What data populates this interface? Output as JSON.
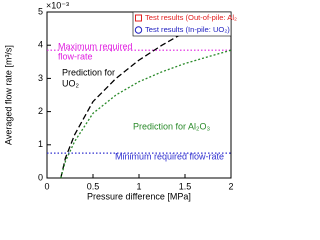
{
  "chart_data": {
    "type": "line",
    "y_multiplier": "×10⁻³",
    "xlabel": "Pressure difference [MPa]",
    "ylabel": "Averaged flow rate [m³/s]",
    "xlim": [
      0,
      2
    ],
    "xticks": [
      0,
      0.5,
      1,
      1.5,
      2
    ],
    "ylim": [
      0,
      5
    ],
    "yticks": [
      0,
      1,
      2,
      3,
      4,
      5
    ],
    "legend": [
      {
        "name": "Test results (Out-of-pile: Al₂O₃)",
        "color": "#e02020",
        "marker": "square"
      },
      {
        "name": "Test results (In-pile: UO₂)",
        "color": "#2020c0",
        "marker": "circle"
      }
    ],
    "series": [
      {
        "label": [
          "Prediction for",
          "UO₂"
        ],
        "color": "#000000",
        "dash": "6,3",
        "x": [
          0.15,
          0.2,
          0.3,
          0.5,
          0.75,
          1,
          1.25,
          1.5,
          1.75,
          2
        ],
        "y": [
          0,
          0.6,
          1.3,
          2.3,
          3.0,
          3.55,
          4.0,
          4.4,
          4.7,
          4.95
        ]
      },
      {
        "label": [
          "Prediction for Al₂O₃"
        ],
        "color": "#2a8a2a",
        "dash": "2,2",
        "x": [
          0.15,
          0.2,
          0.3,
          0.5,
          0.75,
          1,
          1.25,
          1.5,
          1.75,
          2
        ],
        "y": [
          0,
          0.5,
          1.1,
          1.95,
          2.5,
          2.9,
          3.2,
          3.45,
          3.65,
          3.85
        ]
      }
    ],
    "reference_lines": [
      {
        "label": [
          "Maximum required",
          "flow-rate"
        ],
        "value": 3.85,
        "color": "#e020e0"
      },
      {
        "label": [
          "Minimum required flow-rate"
        ],
        "value": 0.75,
        "color": "#3030d0"
      }
    ]
  }
}
